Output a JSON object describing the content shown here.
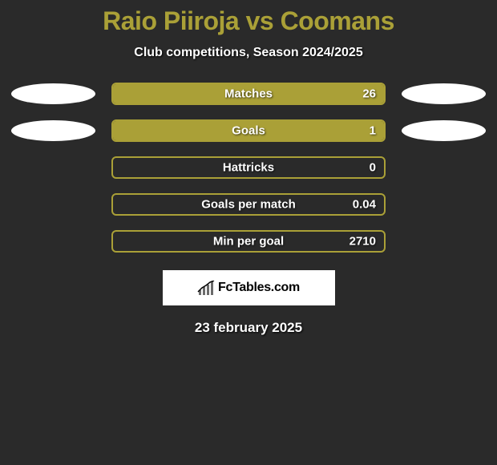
{
  "title": {
    "left": "Raio Piiroja",
    "vs": "vs",
    "right": "Coomans",
    "left_color": "#aaa037",
    "vs_color": "#aaa037",
    "right_color": "#aaa037"
  },
  "subtitle": "Club competitions, Season 2024/2025",
  "background_color": "#2a2a2a",
  "stats": [
    {
      "label": "Matches",
      "value": "26",
      "fill_percent": 100,
      "show_ellipses": true,
      "border_color": "#aaa037",
      "fill_color": "#aaa037"
    },
    {
      "label": "Goals",
      "value": "1",
      "fill_percent": 100,
      "show_ellipses": true,
      "border_color": "#aaa037",
      "fill_color": "#aaa037"
    },
    {
      "label": "Hattricks",
      "value": "0",
      "fill_percent": 0,
      "show_ellipses": false,
      "border_color": "#aaa037",
      "fill_color": "#aaa037"
    },
    {
      "label": "Goals per match",
      "value": "0.04",
      "fill_percent": 0,
      "show_ellipses": false,
      "border_color": "#aaa037",
      "fill_color": "#aaa037"
    },
    {
      "label": "Min per goal",
      "value": "2710",
      "fill_percent": 0,
      "show_ellipses": false,
      "border_color": "#aaa037",
      "fill_color": "#aaa037"
    }
  ],
  "logo": {
    "text": "FcTables.com",
    "bar_color": "#6b6b6b",
    "line_color": "#000000"
  },
  "date": "23 february 2025"
}
